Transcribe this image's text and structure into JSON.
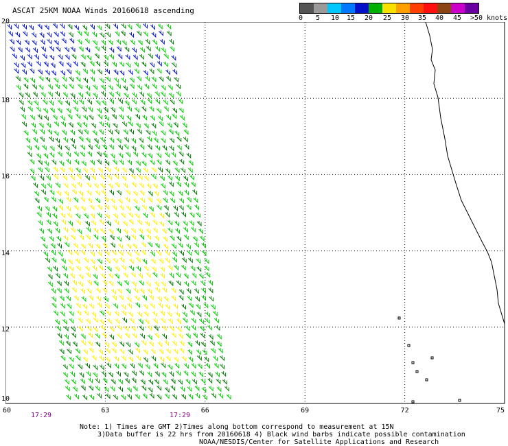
{
  "title": "ASCAT 25KM NOAA Winds 20160618 ascending",
  "colorbar": {
    "labels": [
      "0",
      "5",
      "10",
      "15",
      "20",
      "25",
      "30",
      "35",
      "40",
      "45",
      ">50 knots"
    ],
    "colors": [
      "#555555",
      "#9a9a9a",
      "#00c8ff",
      "#0078ff",
      "#0010c8",
      "#00b000",
      "#f8e000",
      "#ffa000",
      "#ff4000",
      "#ff1010",
      "#8b4513",
      "#cc00cc",
      "#6a00a0"
    ]
  },
  "map": {
    "lat_labels": [
      "20",
      "18",
      "16",
      "14",
      "12",
      "10"
    ],
    "lon_labels": [
      "60",
      "63",
      "66",
      "69",
      "72",
      "75"
    ],
    "time_labels": [
      "17:29",
      "17:29"
    ],
    "gridline_color": "#000000",
    "barb_colors": {
      "light_green": "#00cc00",
      "dark_green": "#007a00",
      "yellow": "#ffee00",
      "blue": "#0010c8"
    }
  },
  "notes": [
    "Note: 1) Times are GMT 2)Times along bottom correspond to measurement at 15N",
    "3)Data buffer is 22 hrs from 20160618 4) Black wind barbs indicate possible contamination",
    "NOAA/NESDIS/Center for Satellite Applications and Research"
  ]
}
